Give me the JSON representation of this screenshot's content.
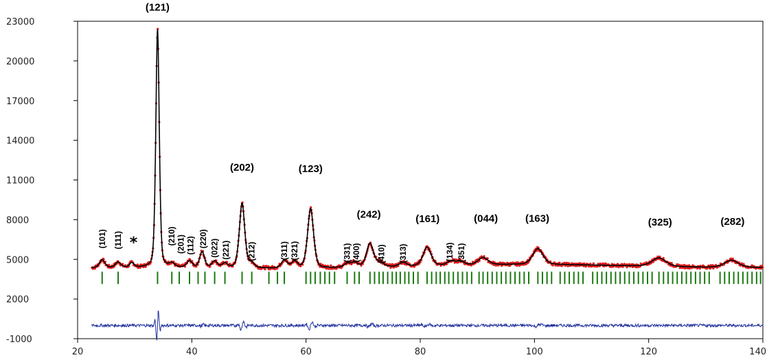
{
  "chart_data": {
    "type": "line",
    "title": "",
    "xlabel": "",
    "ylabel": "",
    "xlim": [
      20,
      140
    ],
    "ylim": [
      -1000,
      23000
    ],
    "x_ticks": [
      20,
      40,
      60,
      80,
      100,
      120,
      140
    ],
    "y_ticks": [
      -1000,
      2000,
      5000,
      8000,
      11000,
      14000,
      17000,
      20000,
      23000
    ],
    "grid": false,
    "background": 4500,
    "peaks": [
      {
        "x": 24.3,
        "height": 600,
        "width": 0.5
      },
      {
        "x": 27.1,
        "height": 400,
        "width": 0.5
      },
      {
        "x": 29.5,
        "height": 350,
        "width": 0.4
      },
      {
        "x": 34.0,
        "height": 18000,
        "width": 0.32
      },
      {
        "x": 36.5,
        "height": 300,
        "width": 0.5
      },
      {
        "x": 39.6,
        "height": 500,
        "width": 0.5
      },
      {
        "x": 41.8,
        "height": 1200,
        "width": 0.45
      },
      {
        "x": 44.0,
        "height": 500,
        "width": 0.5
      },
      {
        "x": 45.8,
        "height": 350,
        "width": 0.5
      },
      {
        "x": 48.8,
        "height": 4900,
        "width": 0.5
      },
      {
        "x": 50.5,
        "height": 350,
        "width": 0.5
      },
      {
        "x": 56.2,
        "height": 600,
        "width": 0.55
      },
      {
        "x": 58.0,
        "height": 500,
        "width": 0.55
      },
      {
        "x": 60.8,
        "height": 4500,
        "width": 0.55
      },
      {
        "x": 67.2,
        "height": 300,
        "width": 0.6
      },
      {
        "x": 68.5,
        "height": 350,
        "width": 0.6
      },
      {
        "x": 71.2,
        "height": 1800,
        "width": 0.65
      },
      {
        "x": 73.0,
        "height": 350,
        "width": 0.6
      },
      {
        "x": 77.0,
        "height": 300,
        "width": 0.65
      },
      {
        "x": 81.2,
        "height": 1400,
        "width": 0.75
      },
      {
        "x": 85.4,
        "height": 300,
        "width": 0.7
      },
      {
        "x": 87.0,
        "height": 300,
        "width": 0.7
      },
      {
        "x": 91.0,
        "height": 550,
        "width": 0.9
      },
      {
        "x": 100.6,
        "height": 1200,
        "width": 0.95
      },
      {
        "x": 121.8,
        "height": 650,
        "width": 1.3
      },
      {
        "x": 134.5,
        "height": 550,
        "width": 1.3
      }
    ],
    "difference_baseline": 0,
    "bragg_row_y": 3600,
    "bragg_positions": [
      24.3,
      27.1,
      34.0,
      36.5,
      37.8,
      39.6,
      41.1,
      42.3,
      44.0,
      45.8,
      48.8,
      50.5,
      53.5,
      55.0,
      56.2,
      60.0,
      60.8,
      61.6,
      62.5,
      63.3,
      64.1,
      65.0,
      67.2,
      68.5,
      69.3,
      71.2,
      72.0,
      72.8,
      73.5,
      74.3,
      75.1,
      75.8,
      76.5,
      77.3,
      78.0,
      78.8,
      79.6,
      81.2,
      82.0,
      82.8,
      83.5,
      84.3,
      85.0,
      85.8,
      86.6,
      87.4,
      88.2,
      89.0,
      90.3,
      91.0,
      91.8,
      92.6,
      93.4,
      94.2,
      95.0,
      95.8,
      96.6,
      97.4,
      98.2,
      99.0,
      100.6,
      101.4,
      102.2,
      103.0,
      104.5,
      105.3,
      106.1,
      106.9,
      107.7,
      108.5,
      110.2,
      111.0,
      111.8,
      112.6,
      113.4,
      114.2,
      115.0,
      115.8,
      116.6,
      117.4,
      118.2,
      119.0,
      119.8,
      120.6,
      121.8,
      122.6,
      123.4,
      124.2,
      125.0,
      125.8,
      126.6,
      127.4,
      128.2,
      129.0,
      129.8,
      130.6,
      132.5,
      133.3,
      134.1,
      134.9,
      135.7,
      136.5,
      137.3,
      138.1,
      138.9,
      139.6
    ],
    "series": [
      {
        "role": "observed",
        "color": "#dd1f1f"
      },
      {
        "role": "calculated",
        "color": "#000000"
      },
      {
        "role": "bragg",
        "color": "#1a7a10"
      },
      {
        "role": "difference",
        "color": "#1f2f9e"
      }
    ],
    "annotations": [
      {
        "text": "(121)",
        "x": 34.0,
        "y": 23800,
        "style": "big"
      },
      {
        "text": "(202)",
        "x": 48.8,
        "y": 11700,
        "style": "big"
      },
      {
        "text": "(123)",
        "x": 60.8,
        "y": 11600,
        "style": "big"
      },
      {
        "text": "(242)",
        "x": 71.0,
        "y": 8150,
        "style": "big"
      },
      {
        "text": "(161)",
        "x": 81.3,
        "y": 7800,
        "style": "big"
      },
      {
        "text": "(044)",
        "x": 91.5,
        "y": 7850,
        "style": "big"
      },
      {
        "text": "(163)",
        "x": 100.5,
        "y": 7850,
        "style": "big"
      },
      {
        "text": "(325)",
        "x": 122.0,
        "y": 7550,
        "style": "big"
      },
      {
        "text": "(282)",
        "x": 134.7,
        "y": 7600,
        "style": "big"
      },
      {
        "text": "(101)",
        "x": 24.3,
        "y": 6550,
        "style": "small"
      },
      {
        "text": "(111)",
        "x": 27.1,
        "y": 6450,
        "style": "small"
      },
      {
        "text": "(210)",
        "x": 36.5,
        "y": 6750,
        "style": "small"
      },
      {
        "text": "(201)",
        "x": 38.1,
        "y": 6150,
        "style": "small"
      },
      {
        "text": "(112)",
        "x": 39.8,
        "y": 6050,
        "style": "small"
      },
      {
        "text": "(220)",
        "x": 42.0,
        "y": 6550,
        "style": "small"
      },
      {
        "text": "(022)",
        "x": 44.0,
        "y": 5850,
        "style": "small"
      },
      {
        "text": "(221)",
        "x": 46.0,
        "y": 5700,
        "style": "small"
      },
      {
        "text": "(212)",
        "x": 50.5,
        "y": 5600,
        "style": "small"
      },
      {
        "text": "(311)",
        "x": 56.2,
        "y": 5650,
        "style": "small"
      },
      {
        "text": "(321)",
        "x": 58.0,
        "y": 5650,
        "style": "small"
      },
      {
        "text": "(331)",
        "x": 67.2,
        "y": 5500,
        "style": "small"
      },
      {
        "text": "(400)",
        "x": 68.8,
        "y": 5500,
        "style": "small"
      },
      {
        "text": "(410)",
        "x": 73.2,
        "y": 5400,
        "style": "small"
      },
      {
        "text": "(313)",
        "x": 77.0,
        "y": 5450,
        "style": "small"
      },
      {
        "text": "(134)",
        "x": 85.2,
        "y": 5550,
        "style": "small"
      },
      {
        "text": "(351)",
        "x": 87.2,
        "y": 5500,
        "style": "small"
      },
      {
        "text": "*",
        "x": 29.8,
        "y": 6300,
        "style": "star"
      }
    ]
  }
}
